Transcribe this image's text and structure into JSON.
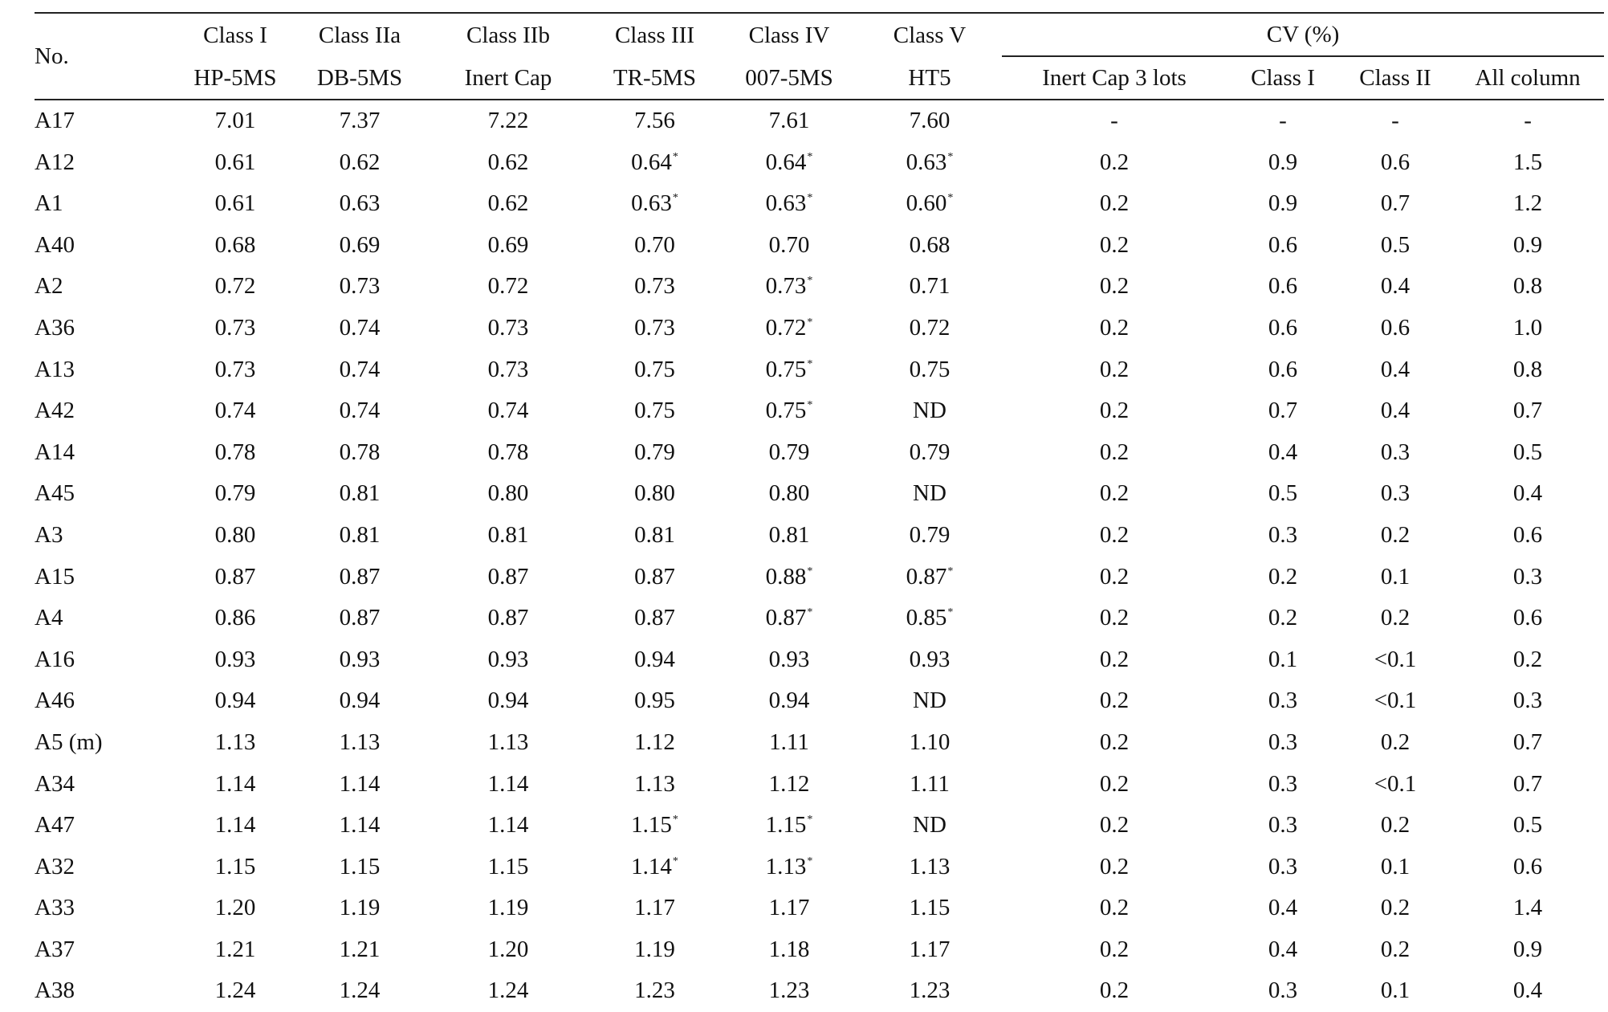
{
  "table": {
    "header": {
      "no": "No.",
      "columns": [
        {
          "class": "Class I",
          "column": "HP-5MS"
        },
        {
          "class": "Class IIa",
          "column": "DB-5MS"
        },
        {
          "class": "Class IIb",
          "column": "Inert Cap"
        },
        {
          "class": "Class III",
          "column": "TR-5MS"
        },
        {
          "class": "Class IV",
          "column": "007-5MS"
        },
        {
          "class": "Class V",
          "column": "HT5"
        }
      ],
      "cv_group": "CV (%)",
      "cv_columns": [
        "Inert Cap 3 lots",
        "Class I",
        "Class II",
        "All column"
      ]
    },
    "rows": [
      {
        "no": "A17",
        "vals": [
          "7.01",
          "7.37",
          "7.22",
          "7.56",
          "7.61",
          "7.60"
        ],
        "star": [
          false,
          false,
          false,
          false,
          false,
          false
        ],
        "cv": [
          "-",
          "-",
          "-",
          "-"
        ]
      },
      {
        "no": "A12",
        "vals": [
          "0.61",
          "0.62",
          "0.62",
          "0.64",
          "0.64",
          "0.63"
        ],
        "star": [
          false,
          false,
          false,
          true,
          true,
          true
        ],
        "cv": [
          "0.2",
          "0.9",
          "0.6",
          "1.5"
        ]
      },
      {
        "no": "A1",
        "vals": [
          "0.61",
          "0.63",
          "0.62",
          "0.63",
          "0.63",
          "0.60"
        ],
        "star": [
          false,
          false,
          false,
          true,
          true,
          true
        ],
        "cv": [
          "0.2",
          "0.9",
          "0.7",
          "1.2"
        ]
      },
      {
        "no": "A40",
        "vals": [
          "0.68",
          "0.69",
          "0.69",
          "0.70",
          "0.70",
          "0.68"
        ],
        "star": [
          false,
          false,
          false,
          false,
          false,
          false
        ],
        "cv": [
          "0.2",
          "0.6",
          "0.5",
          "0.9"
        ]
      },
      {
        "no": "A2",
        "vals": [
          "0.72",
          "0.73",
          "0.72",
          "0.73",
          "0.73",
          "0.71"
        ],
        "star": [
          false,
          false,
          false,
          false,
          true,
          false
        ],
        "cv": [
          "0.2",
          "0.6",
          "0.4",
          "0.8"
        ]
      },
      {
        "no": "A36",
        "vals": [
          "0.73",
          "0.74",
          "0.73",
          "0.73",
          "0.72",
          "0.72"
        ],
        "star": [
          false,
          false,
          false,
          false,
          true,
          false
        ],
        "cv": [
          "0.2",
          "0.6",
          "0.6",
          "1.0"
        ]
      },
      {
        "no": "A13",
        "vals": [
          "0.73",
          "0.74",
          "0.73",
          "0.75",
          "0.75",
          "0.75"
        ],
        "star": [
          false,
          false,
          false,
          false,
          true,
          false
        ],
        "cv": [
          "0.2",
          "0.6",
          "0.4",
          "0.8"
        ]
      },
      {
        "no": "A42",
        "vals": [
          "0.74",
          "0.74",
          "0.74",
          "0.75",
          "0.75",
          "ND"
        ],
        "star": [
          false,
          false,
          false,
          false,
          true,
          false
        ],
        "cv": [
          "0.2",
          "0.7",
          "0.4",
          "0.7"
        ]
      },
      {
        "no": "A14",
        "vals": [
          "0.78",
          "0.78",
          "0.78",
          "0.79",
          "0.79",
          "0.79"
        ],
        "star": [
          false,
          false,
          false,
          false,
          false,
          false
        ],
        "cv": [
          "0.2",
          "0.4",
          "0.3",
          "0.5"
        ]
      },
      {
        "no": "A45",
        "vals": [
          "0.79",
          "0.81",
          "0.80",
          "0.80",
          "0.80",
          "ND"
        ],
        "star": [
          false,
          false,
          false,
          false,
          false,
          false
        ],
        "cv": [
          "0.2",
          "0.5",
          "0.3",
          "0.4"
        ]
      },
      {
        "no": "A3",
        "vals": [
          "0.80",
          "0.81",
          "0.81",
          "0.81",
          "0.81",
          "0.79"
        ],
        "star": [
          false,
          false,
          false,
          false,
          false,
          false
        ],
        "cv": [
          "0.2",
          "0.3",
          "0.2",
          "0.6"
        ]
      },
      {
        "no": "A15",
        "vals": [
          "0.87",
          "0.87",
          "0.87",
          "0.87",
          "0.88",
          "0.87"
        ],
        "star": [
          false,
          false,
          false,
          false,
          true,
          true
        ],
        "cv": [
          "0.2",
          "0.2",
          "0.1",
          "0.3"
        ]
      },
      {
        "no": "A4",
        "vals": [
          "0.86",
          "0.87",
          "0.87",
          "0.87",
          "0.87",
          "0.85"
        ],
        "star": [
          false,
          false,
          false,
          false,
          true,
          true
        ],
        "cv": [
          "0.2",
          "0.2",
          "0.2",
          "0.6"
        ]
      },
      {
        "no": "A16",
        "vals": [
          "0.93",
          "0.93",
          "0.93",
          "0.94",
          "0.93",
          "0.93"
        ],
        "star": [
          false,
          false,
          false,
          false,
          false,
          false
        ],
        "cv": [
          "0.2",
          "0.1",
          "<0.1",
          "0.2"
        ]
      },
      {
        "no": "A46",
        "vals": [
          "0.94",
          "0.94",
          "0.94",
          "0.95",
          "0.94",
          "ND"
        ],
        "star": [
          false,
          false,
          false,
          false,
          false,
          false
        ],
        "cv": [
          "0.2",
          "0.3",
          "<0.1",
          "0.3"
        ]
      },
      {
        "no": "A5 (m)",
        "vals": [
          "1.13",
          "1.13",
          "1.13",
          "1.12",
          "1.11",
          "1.10"
        ],
        "star": [
          false,
          false,
          false,
          false,
          false,
          false
        ],
        "cv": [
          "0.2",
          "0.3",
          "0.2",
          "0.7"
        ]
      },
      {
        "no": "A34",
        "vals": [
          "1.14",
          "1.14",
          "1.14",
          "1.13",
          "1.12",
          "1.11"
        ],
        "star": [
          false,
          false,
          false,
          false,
          false,
          false
        ],
        "cv": [
          "0.2",
          "0.3",
          "<0.1",
          "0.7"
        ]
      },
      {
        "no": "A47",
        "vals": [
          "1.14",
          "1.14",
          "1.14",
          "1.15",
          "1.15",
          "ND"
        ],
        "star": [
          false,
          false,
          false,
          true,
          true,
          false
        ],
        "cv": [
          "0.2",
          "0.3",
          "0.2",
          "0.5"
        ]
      },
      {
        "no": "A32",
        "vals": [
          "1.15",
          "1.15",
          "1.15",
          "1.14",
          "1.13",
          "1.13"
        ],
        "star": [
          false,
          false,
          false,
          true,
          true,
          false
        ],
        "cv": [
          "0.2",
          "0.3",
          "0.1",
          "0.6"
        ]
      },
      {
        "no": "A33",
        "vals": [
          "1.20",
          "1.19",
          "1.19",
          "1.17",
          "1.17",
          "1.15"
        ],
        "star": [
          false,
          false,
          false,
          false,
          false,
          false
        ],
        "cv": [
          "0.2",
          "0.4",
          "0.2",
          "1.4"
        ]
      },
      {
        "no": "A37",
        "vals": [
          "1.21",
          "1.21",
          "1.20",
          "1.19",
          "1.18",
          "1.17"
        ],
        "star": [
          false,
          false,
          false,
          false,
          false,
          false
        ],
        "cv": [
          "0.2",
          "0.4",
          "0.2",
          "0.9"
        ]
      },
      {
        "no": "A38",
        "vals": [
          "1.24",
          "1.24",
          "1.24",
          "1.23",
          "1.23",
          "1.23"
        ],
        "star": [
          false,
          false,
          false,
          false,
          false,
          false
        ],
        "cv": [
          "0.2",
          "0.3",
          "0.1",
          "0.4"
        ]
      }
    ],
    "star_mark": "*"
  }
}
